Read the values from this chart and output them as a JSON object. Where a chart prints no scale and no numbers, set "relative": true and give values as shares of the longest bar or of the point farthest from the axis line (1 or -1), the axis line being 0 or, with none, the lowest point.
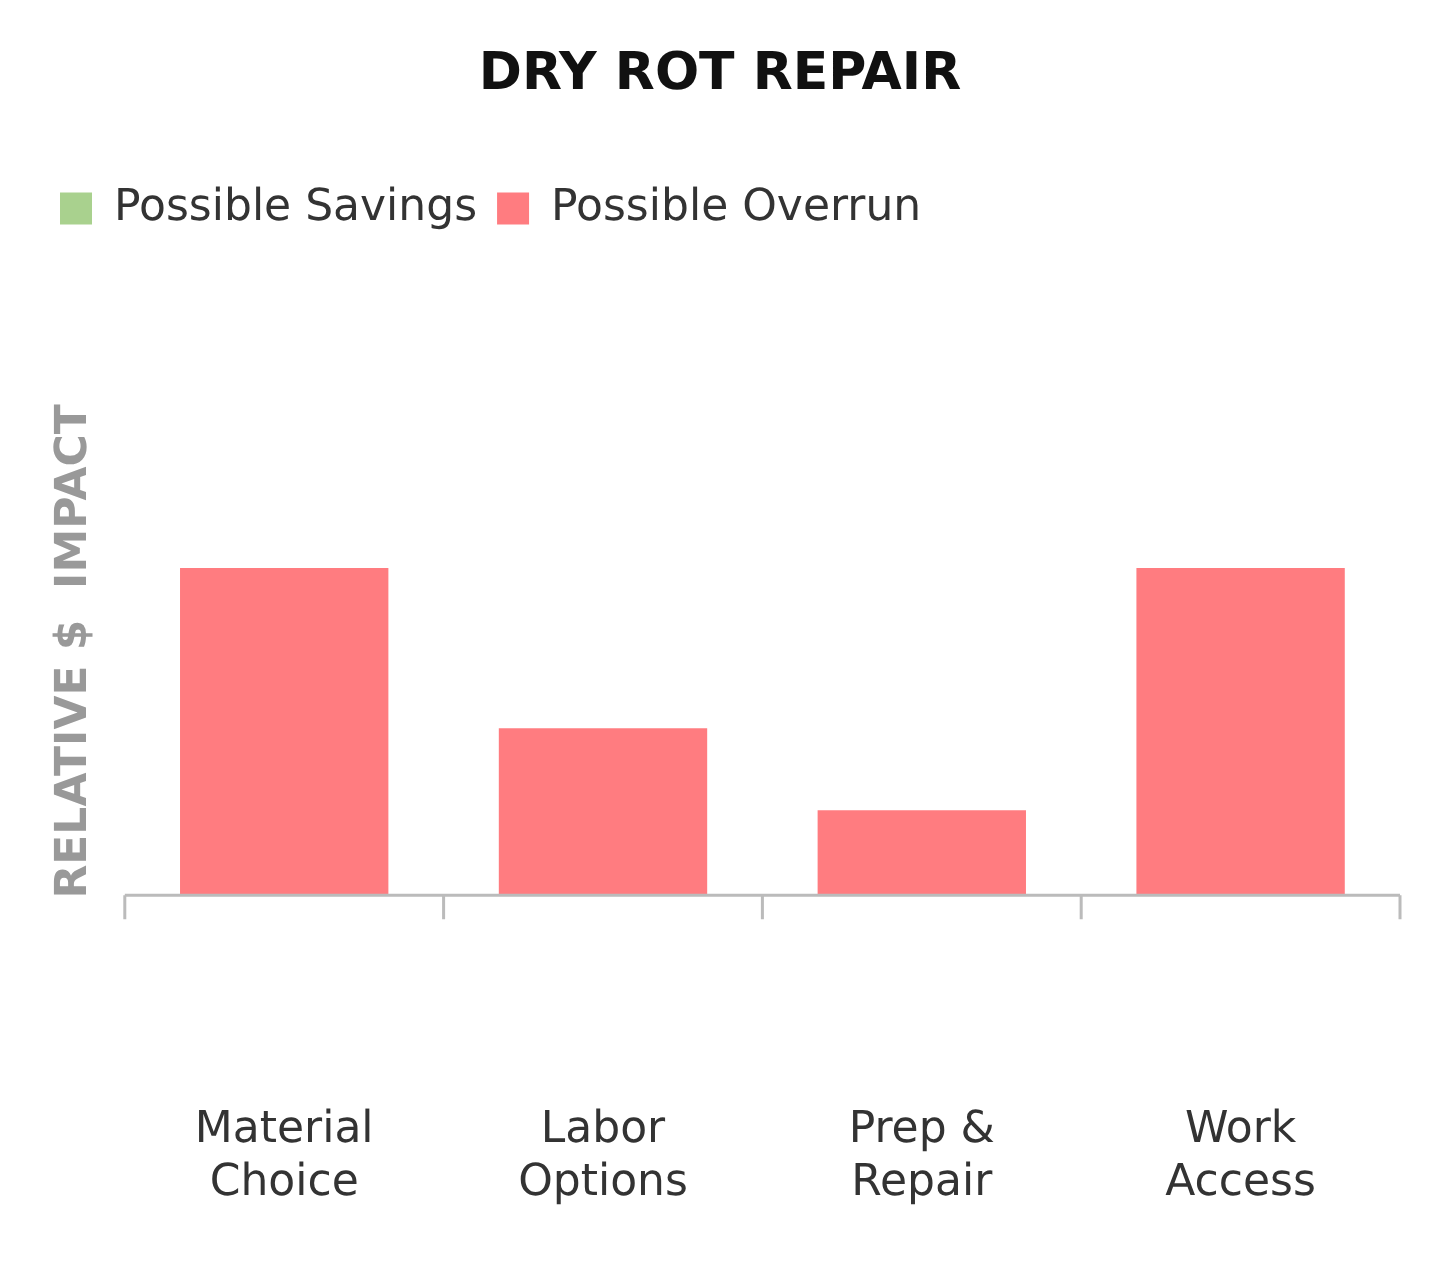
{
  "chart_data": {
    "type": "bar",
    "title": "DRY ROT REPAIR",
    "ylabel": "RELATIVE $  IMPACT",
    "relative": true,
    "legend": "top",
    "categories": [
      "Material Choice",
      "Labor Options",
      "Prep & Repair",
      "Work Access"
    ],
    "series": [
      {
        "name": "Possible Savings",
        "color": "#a9d18e",
        "values": [
          null,
          null,
          null,
          null
        ]
      },
      {
        "name": "Possible Overrun",
        "color": "#ff7c80",
        "values": [
          1,
          0.51,
          0.26,
          1
        ]
      }
    ]
  }
}
